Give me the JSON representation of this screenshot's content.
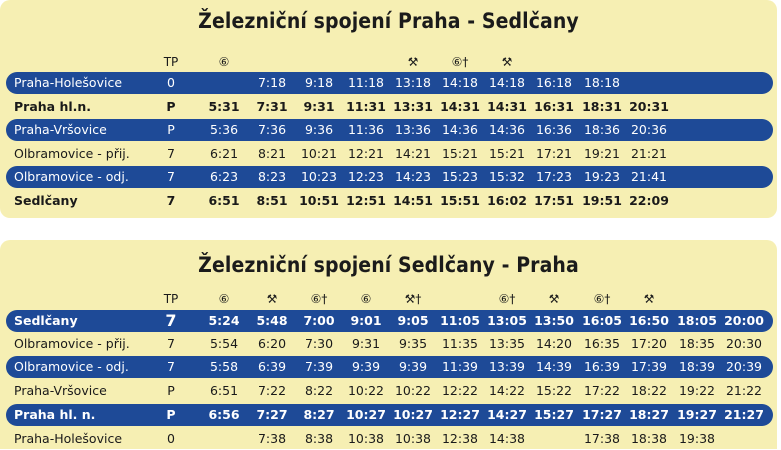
{
  "tables": [
    {
      "title": "Železniční spojení Praha - Sedlčany",
      "header": {
        "tp": "TP",
        "marks": [
          "⑥",
          "",
          "",
          "",
          "⚒",
          "⑥†",
          "⚒",
          "",
          "",
          ""
        ]
      },
      "rows": [
        {
          "name": "Praha-Holešovice",
          "tp": "0",
          "style": "blue",
          "times": [
            "",
            "7:18",
            "9:18",
            "11:18",
            "13:18",
            "14:18",
            "14:18",
            "16:18",
            "18:18",
            ""
          ]
        },
        {
          "name": "Praha hl.n.",
          "tp": "P",
          "style": "bold",
          "times": [
            "5:31",
            "7:31",
            "9:31",
            "11:31",
            "13:31",
            "14:31",
            "14:31",
            "16:31",
            "18:31",
            "20:31"
          ]
        },
        {
          "name": "Praha-Vršovice",
          "tp": "P",
          "style": "blue",
          "times": [
            "5:36",
            "7:36",
            "9:36",
            "11:36",
            "13:36",
            "14:36",
            "14:36",
            "16:36",
            "18:36",
            "20:36"
          ]
        },
        {
          "name": "Olbramovice - přij.",
          "tp": "7",
          "style": "plain",
          "times": [
            "6:21",
            "8:21",
            "10:21",
            "12:21",
            "14:21",
            "15:21",
            "15:21",
            "17:21",
            "19:21",
            "21:21"
          ]
        },
        {
          "name": "Olbramovice - odj.",
          "tp": "7",
          "style": "blue",
          "times": [
            "6:23",
            "8:23",
            "10:23",
            "12:23",
            "14:23",
            "15:23",
            "15:32",
            "17:23",
            "19:23",
            "21:41"
          ]
        },
        {
          "name": "Sedlčany",
          "tp": "7",
          "style": "bold",
          "times": [
            "6:51",
            "8:51",
            "10:51",
            "12:51",
            "14:51",
            "15:51",
            "16:02",
            "17:51",
            "19:51",
            "22:09"
          ]
        }
      ]
    },
    {
      "title": "Železniční spojení Sedlčany - Praha",
      "header": {
        "tp": "TP",
        "marks": [
          "⑥",
          "⚒",
          "⑥†",
          "⑥",
          "⚒†",
          "",
          "⑥†",
          "⚒",
          "⑥†",
          "⚒",
          "",
          ""
        ]
      },
      "rows": [
        {
          "name": "Sedlčany",
          "tp": "7",
          "style": "blue bold",
          "times": [
            "5:24",
            "5:48",
            "7:00",
            "9:01",
            "9:05",
            "11:05",
            "13:05",
            "13:50",
            "16:05",
            "16:50",
            "18:05",
            "20:00"
          ]
        },
        {
          "name": "Olbramovice - přij.",
          "tp": "7",
          "style": "plain",
          "times": [
            "5:54",
            "6:20",
            "7:30",
            "9:31",
            "9:35",
            "11:35",
            "13:35",
            "14:20",
            "16:35",
            "17:20",
            "18:35",
            "20:30"
          ]
        },
        {
          "name": "Olbramovice - odj.",
          "tp": "7",
          "style": "blue",
          "times": [
            "5:58",
            "6:39",
            "7:39",
            "9:39",
            "9:39",
            "11:39",
            "13:39",
            "14:39",
            "16:39",
            "17:39",
            "18:39",
            "20:39"
          ]
        },
        {
          "name": "Praha-Vršovice",
          "tp": "P",
          "style": "plain",
          "times": [
            "6:51",
            "7:22",
            "8:22",
            "10:22",
            "10:22",
            "12:22",
            "14:22",
            "15:22",
            "17:22",
            "18:22",
            "19:22",
            "21:22"
          ]
        },
        {
          "name": "Praha hl. n.",
          "tp": "P",
          "style": "blue bold",
          "times": [
            "6:56",
            "7:27",
            "8:27",
            "10:27",
            "10:27",
            "12:27",
            "14:27",
            "15:27",
            "17:27",
            "18:27",
            "19:27",
            "21:27"
          ]
        },
        {
          "name": "Praha-Holešovice",
          "tp": "0",
          "style": "plain",
          "times": [
            "",
            "7:38",
            "8:38",
            "10:38",
            "10:38",
            "12:38",
            "14:38",
            "",
            "17:38",
            "18:38",
            "19:38",
            ""
          ]
        }
      ]
    }
  ]
}
